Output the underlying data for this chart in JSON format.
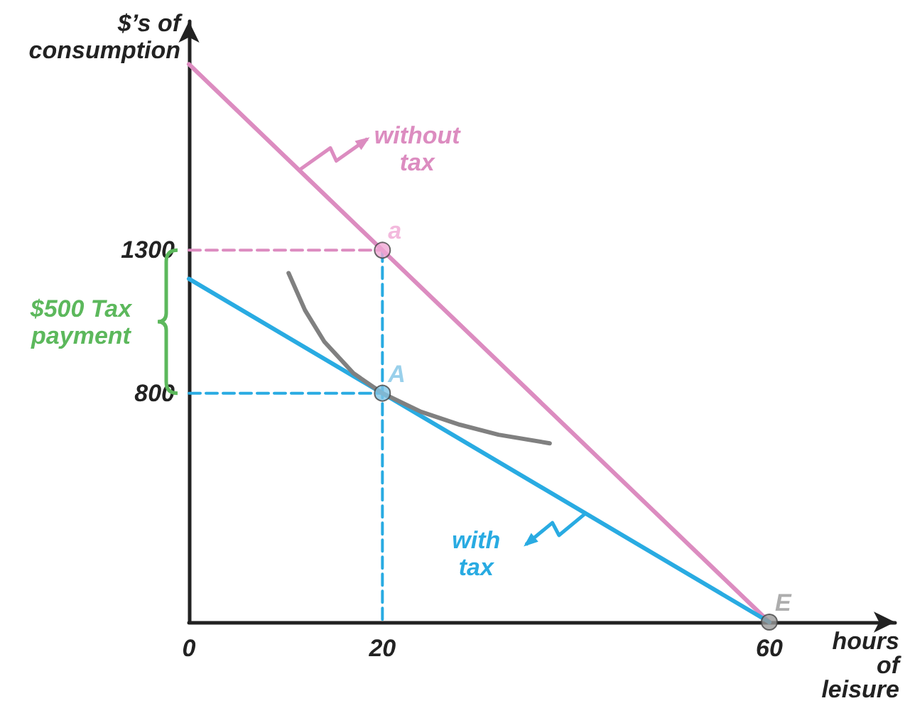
{
  "chart_data": {
    "type": "line",
    "ylabel": "$’s of consumption",
    "xlabel": "hours of leisure",
    "xlim": [
      0,
      73
    ],
    "ylim": [
      0,
      2100
    ],
    "xticks": [
      0,
      20,
      60
    ],
    "yticks": [
      800,
      1300
    ],
    "grid": false,
    "series": [
      {
        "color": "#dc8cc0",
        "x": [
          0,
          60
        ],
        "values": [
          1950,
          0
        ],
        "marker": "none",
        "line_style": "solid"
      },
      {
        "color": "#29abe2",
        "x": [
          0,
          60
        ],
        "values": [
          1200,
          0
        ],
        "marker": "none",
        "line_style": "solid"
      },
      {
        "color": "#808080",
        "x": [
          10.3,
          12,
          14,
          17,
          20,
          24,
          28,
          32,
          37.3
        ],
        "values": [
          1220,
          1090,
          980,
          870,
          800,
          735,
          690,
          655,
          625
        ],
        "marker": "none",
        "line_style": "solid"
      },
      {
        "color": "#dc8cc0",
        "x": [
          0,
          20
        ],
        "values": [
          1300,
          1300
        ],
        "marker": "none",
        "line_style": "dashed"
      },
      {
        "color": "#29abe2",
        "x": [
          20,
          20
        ],
        "values": [
          1300,
          0
        ],
        "marker": "none",
        "line_style": "dashed"
      },
      {
        "color": "#29abe2",
        "x": [
          0,
          20
        ],
        "values": [
          800,
          800
        ],
        "marker": "none",
        "line_style": "dashed"
      },
      {
        "type": "scatter",
        "x": [
          20,
          20,
          60
        ],
        "values": [
          1300,
          800,
          0
        ],
        "colors": [
          "#f0a8d4",
          "#7fc4e6",
          "#999999"
        ],
        "marker": "circle",
        "value_labels": [
          "a",
          "A",
          "E"
        ]
      }
    ],
    "annotations": [
      {
        "text": "without tax",
        "x": 11.4,
        "y": 1580
      },
      {
        "text": "with tax",
        "x": 41,
        "y": 380
      },
      "$500 Tax payment"
    ]
  }
}
